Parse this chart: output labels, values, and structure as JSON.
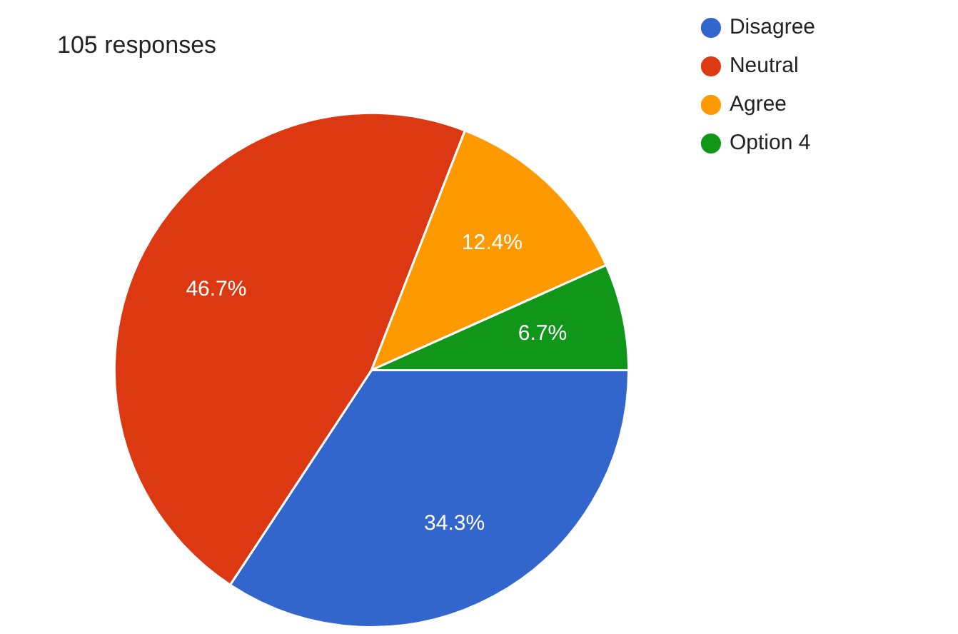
{
  "chart_data": {
    "type": "pie",
    "title": "105 responses",
    "categories": [
      "Disagree",
      "Neutral",
      "Agree",
      "Option 4"
    ],
    "values": [
      34.3,
      46.7,
      12.4,
      6.7
    ],
    "colors": [
      "#3366cc",
      "#dc3912",
      "#ff9900",
      "#109618"
    ],
    "value_labels": [
      "34.3%",
      "46.7%",
      "12.4%",
      "6.7%"
    ],
    "legend": "right"
  }
}
